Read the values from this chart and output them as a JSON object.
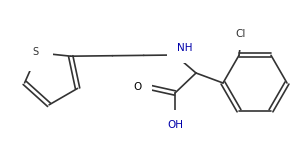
{
  "background_color": "#ffffff",
  "line_color": "#333333",
  "text_color": "#000000",
  "label_color_NH": "#0000aa",
  "label_color_OH": "#0000aa",
  "label_color_Cl": "#333333",
  "label_color_S": "#333333",
  "figsize": [
    3.08,
    1.55
  ],
  "dpi": 100,
  "xlim": [
    0,
    308
  ],
  "ylim": [
    0,
    155
  ]
}
